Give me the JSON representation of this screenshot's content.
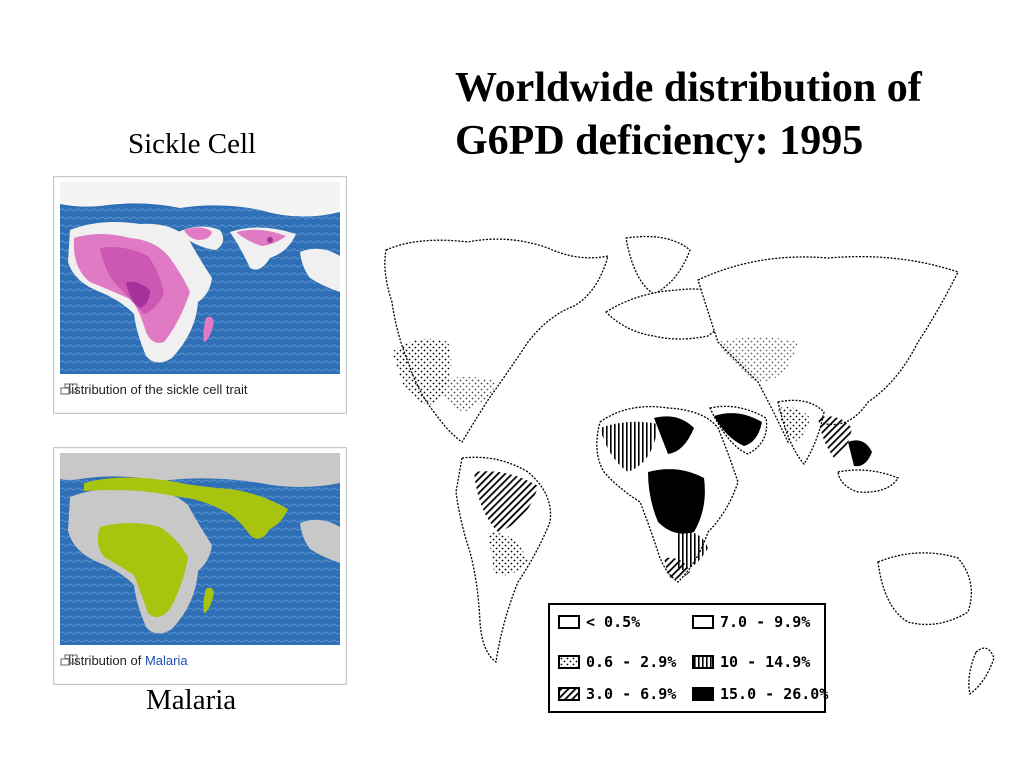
{
  "title_line1": "Worldwide distribution of",
  "title_line2": "G6PD deficiency: 1995",
  "sickle_label": "Sickle Cell",
  "malaria_label": "Malaria",
  "sickle_panel": {
    "caption": "distribution of the sickle cell trait",
    "enlarge_icon": "enlarge-icon"
  },
  "malaria_panel": {
    "caption_prefix": "distribution of ",
    "caption_link": "Malaria",
    "enlarge_icon": "enlarge-icon"
  },
  "legend": {
    "items": [
      {
        "label": "< 0.5%",
        "pattern": "empty"
      },
      {
        "label": "7.0 - 9.9%",
        "pattern": "empty"
      },
      {
        "label": "0.6 - 2.9%",
        "pattern": "dots"
      },
      {
        "label": "10 - 14.9%",
        "pattern": "vertical-lines"
      },
      {
        "label": "3.0 - 6.9%",
        "pattern": "diagonal-lines"
      },
      {
        "label": "15.0 - 26.0%",
        "pattern": "solid"
      }
    ]
  },
  "colors": {
    "ocean": "#2f6fb5",
    "land_grey": "#c8c8c8",
    "sickle_pink": "#e07ac4",
    "sickle_dark": "#a4329a",
    "malaria_green": "#a9c40f",
    "link_blue": "#1f4fb5"
  }
}
